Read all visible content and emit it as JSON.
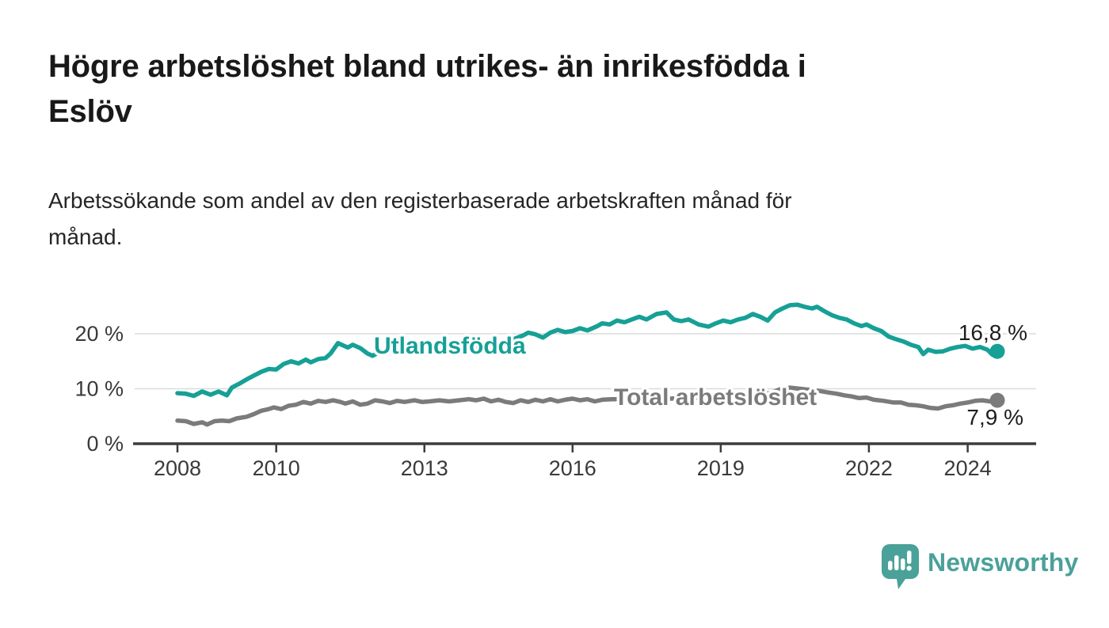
{
  "header": {
    "title": "Högre arbetslöshet bland utrikes- än inrikesfödda i\nEslöv",
    "subtitle": "Arbetssökande som andel av den registerbaserade arbetskraften månad för\nmånad."
  },
  "branding": {
    "logo_text": "Newsworthy",
    "logo_color": "#4AA199",
    "logo_icon": "newsworthy-speech-bubble-bar-chart-icon"
  },
  "chart_data": {
    "type": "line",
    "title": "Högre arbetslöshet bland utrikes- än inrikesfödda i Eslöv",
    "subtitle": "Arbetssökande som andel av den registerbaserade arbetskraften månad för månad.",
    "xlabel": "",
    "ylabel": "",
    "unit": "%",
    "decimal_separator": ",",
    "xlim": [
      2007.1,
      2025.4
    ],
    "ylim": [
      0,
      28
    ],
    "grid": "horizontal",
    "legend_position": "inline-labels",
    "colors": {
      "gridline": "#DBDBDB",
      "axis": "#3C3C3C",
      "tick_label": "#3A3A3A",
      "value_label": "#1E1E1E"
    },
    "x_ticks": [
      {
        "value": 2008,
        "label": "2008"
      },
      {
        "value": 2010,
        "label": "2010"
      },
      {
        "value": 2013,
        "label": "2013"
      },
      {
        "value": 2016,
        "label": "2016"
      },
      {
        "value": 2019,
        "label": "2019"
      },
      {
        "value": 2022,
        "label": "2022"
      },
      {
        "value": 2024,
        "label": "2024"
      }
    ],
    "y_ticks": [
      {
        "value": 0,
        "label": "0 %"
      },
      {
        "value": 10,
        "label": "10 %"
      },
      {
        "value": 20,
        "label": "20 %"
      }
    ],
    "series": [
      {
        "name": "Utlandsfödda",
        "color": "#16A096",
        "end_value": 16.8,
        "end_value_label": "16,8 %",
        "points": [
          [
            2008.0,
            9.2
          ],
          [
            2008.17,
            9.1
          ],
          [
            2008.33,
            8.7
          ],
          [
            2008.5,
            9.5
          ],
          [
            2008.67,
            8.9
          ],
          [
            2008.83,
            9.5
          ],
          [
            2009.0,
            8.8
          ],
          [
            2009.1,
            10.2
          ],
          [
            2009.25,
            10.9
          ],
          [
            2009.4,
            11.7
          ],
          [
            2009.55,
            12.4
          ],
          [
            2009.7,
            13.1
          ],
          [
            2009.85,
            13.6
          ],
          [
            2010.0,
            13.5
          ],
          [
            2010.15,
            14.5
          ],
          [
            2010.3,
            15.0
          ],
          [
            2010.45,
            14.6
          ],
          [
            2010.6,
            15.3
          ],
          [
            2010.7,
            14.8
          ],
          [
            2010.85,
            15.4
          ],
          [
            2011.0,
            15.6
          ],
          [
            2011.1,
            16.4
          ],
          [
            2011.25,
            18.3
          ],
          [
            2011.35,
            17.9
          ],
          [
            2011.45,
            17.5
          ],
          [
            2011.55,
            18.0
          ],
          [
            2011.7,
            17.4
          ],
          [
            2011.85,
            16.4
          ],
          [
            2011.95,
            16.0
          ],
          [
            2012.1,
            16.7
          ],
          [
            2012.25,
            17.0
          ],
          [
            2012.4,
            16.7
          ],
          [
            2012.55,
            17.2
          ],
          [
            2012.7,
            16.7
          ],
          [
            2012.85,
            16.9
          ],
          [
            2013.0,
            17.0
          ],
          [
            2013.2,
            17.3
          ],
          [
            2013.4,
            17.0
          ],
          [
            2013.6,
            17.4
          ],
          [
            2013.8,
            17.2
          ],
          [
            2014.0,
            17.6
          ],
          [
            2014.2,
            17.9
          ],
          [
            2014.4,
            18.3
          ],
          [
            2014.6,
            18.6
          ],
          [
            2014.8,
            19.0
          ],
          [
            2015.0,
            19.7
          ],
          [
            2015.1,
            20.2
          ],
          [
            2015.25,
            19.9
          ],
          [
            2015.4,
            19.3
          ],
          [
            2015.55,
            20.2
          ],
          [
            2015.7,
            20.7
          ],
          [
            2015.85,
            20.3
          ],
          [
            2016.0,
            20.5
          ],
          [
            2016.15,
            21.0
          ],
          [
            2016.3,
            20.6
          ],
          [
            2016.5,
            21.4
          ],
          [
            2016.6,
            21.9
          ],
          [
            2016.75,
            21.7
          ],
          [
            2016.9,
            22.4
          ],
          [
            2017.05,
            22.1
          ],
          [
            2017.2,
            22.6
          ],
          [
            2017.35,
            23.1
          ],
          [
            2017.5,
            22.6
          ],
          [
            2017.7,
            23.6
          ],
          [
            2017.9,
            23.9
          ],
          [
            2018.05,
            22.6
          ],
          [
            2018.2,
            22.3
          ],
          [
            2018.35,
            22.6
          ],
          [
            2018.55,
            21.7
          ],
          [
            2018.75,
            21.3
          ],
          [
            2018.9,
            21.9
          ],
          [
            2019.05,
            22.4
          ],
          [
            2019.2,
            22.1
          ],
          [
            2019.35,
            22.6
          ],
          [
            2019.5,
            22.9
          ],
          [
            2019.65,
            23.6
          ],
          [
            2019.8,
            23.1
          ],
          [
            2019.95,
            22.4
          ],
          [
            2020.1,
            23.9
          ],
          [
            2020.25,
            24.6
          ],
          [
            2020.4,
            25.2
          ],
          [
            2020.55,
            25.3
          ],
          [
            2020.7,
            24.9
          ],
          [
            2020.85,
            24.6
          ],
          [
            2020.95,
            24.9
          ],
          [
            2021.1,
            24.1
          ],
          [
            2021.25,
            23.4
          ],
          [
            2021.4,
            22.9
          ],
          [
            2021.55,
            22.6
          ],
          [
            2021.7,
            21.9
          ],
          [
            2021.85,
            21.4
          ],
          [
            2021.95,
            21.7
          ],
          [
            2022.1,
            21.0
          ],
          [
            2022.25,
            20.5
          ],
          [
            2022.4,
            19.5
          ],
          [
            2022.55,
            19.0
          ],
          [
            2022.7,
            18.6
          ],
          [
            2022.85,
            18.0
          ],
          [
            2023.0,
            17.6
          ],
          [
            2023.1,
            16.3
          ],
          [
            2023.2,
            17.1
          ],
          [
            2023.35,
            16.7
          ],
          [
            2023.5,
            16.8
          ],
          [
            2023.65,
            17.3
          ],
          [
            2023.8,
            17.6
          ],
          [
            2023.95,
            17.8
          ],
          [
            2024.1,
            17.3
          ],
          [
            2024.25,
            17.6
          ],
          [
            2024.4,
            17.1
          ],
          [
            2024.5,
            16.2
          ],
          [
            2024.6,
            16.8
          ]
        ]
      },
      {
        "name": "Total arbetslöshet",
        "color": "#7B7B7B",
        "end_value": 7.9,
        "end_value_label": "7,9 %",
        "points": [
          [
            2008.0,
            4.2
          ],
          [
            2008.17,
            4.1
          ],
          [
            2008.33,
            3.6
          ],
          [
            2008.5,
            3.9
          ],
          [
            2008.6,
            3.5
          ],
          [
            2008.75,
            4.1
          ],
          [
            2008.9,
            4.2
          ],
          [
            2009.05,
            4.1
          ],
          [
            2009.2,
            4.6
          ],
          [
            2009.4,
            4.9
          ],
          [
            2009.55,
            5.4
          ],
          [
            2009.7,
            6.0
          ],
          [
            2009.85,
            6.3
          ],
          [
            2009.95,
            6.6
          ],
          [
            2010.1,
            6.3
          ],
          [
            2010.25,
            6.9
          ],
          [
            2010.4,
            7.1
          ],
          [
            2010.55,
            7.6
          ],
          [
            2010.7,
            7.3
          ],
          [
            2010.85,
            7.8
          ],
          [
            2011.0,
            7.6
          ],
          [
            2011.15,
            7.9
          ],
          [
            2011.3,
            7.6
          ],
          [
            2011.4,
            7.3
          ],
          [
            2011.55,
            7.7
          ],
          [
            2011.7,
            7.1
          ],
          [
            2011.85,
            7.3
          ],
          [
            2012.0,
            7.9
          ],
          [
            2012.15,
            7.7
          ],
          [
            2012.3,
            7.4
          ],
          [
            2012.45,
            7.8
          ],
          [
            2012.6,
            7.6
          ],
          [
            2012.8,
            7.9
          ],
          [
            2012.95,
            7.6
          ],
          [
            2013.1,
            7.7
          ],
          [
            2013.3,
            7.9
          ],
          [
            2013.5,
            7.7
          ],
          [
            2013.7,
            7.9
          ],
          [
            2013.9,
            8.1
          ],
          [
            2014.05,
            7.9
          ],
          [
            2014.2,
            8.2
          ],
          [
            2014.35,
            7.7
          ],
          [
            2014.5,
            8.0
          ],
          [
            2014.65,
            7.6
          ],
          [
            2014.8,
            7.4
          ],
          [
            2014.95,
            7.9
          ],
          [
            2015.1,
            7.6
          ],
          [
            2015.25,
            8.0
          ],
          [
            2015.4,
            7.7
          ],
          [
            2015.55,
            8.1
          ],
          [
            2015.7,
            7.7
          ],
          [
            2015.85,
            8.0
          ],
          [
            2016.0,
            8.2
          ],
          [
            2016.15,
            7.9
          ],
          [
            2016.3,
            8.1
          ],
          [
            2016.45,
            7.7
          ],
          [
            2016.6,
            8.0
          ],
          [
            2016.8,
            8.1
          ],
          [
            2017.0,
            8.1
          ],
          [
            2017.25,
            8.3
          ],
          [
            2017.5,
            8.2
          ],
          [
            2017.75,
            8.3
          ],
          [
            2018.0,
            8.2
          ],
          [
            2018.25,
            8.4
          ],
          [
            2018.5,
            8.3
          ],
          [
            2018.75,
            8.5
          ],
          [
            2019.0,
            8.6
          ],
          [
            2019.25,
            8.7
          ],
          [
            2019.5,
            8.8
          ],
          [
            2019.75,
            9.0
          ],
          [
            2020.0,
            9.2
          ],
          [
            2020.2,
            9.9
          ],
          [
            2020.4,
            10.2
          ],
          [
            2020.6,
            10.0
          ],
          [
            2020.8,
            9.8
          ],
          [
            2021.0,
            9.6
          ],
          [
            2021.2,
            9.3
          ],
          [
            2021.35,
            9.1
          ],
          [
            2021.5,
            8.8
          ],
          [
            2021.65,
            8.6
          ],
          [
            2021.8,
            8.3
          ],
          [
            2021.95,
            8.4
          ],
          [
            2022.1,
            8.0
          ],
          [
            2022.3,
            7.8
          ],
          [
            2022.5,
            7.5
          ],
          [
            2022.65,
            7.5
          ],
          [
            2022.8,
            7.1
          ],
          [
            2022.95,
            7.0
          ],
          [
            2023.1,
            6.8
          ],
          [
            2023.25,
            6.5
          ],
          [
            2023.4,
            6.4
          ],
          [
            2023.55,
            6.8
          ],
          [
            2023.7,
            7.0
          ],
          [
            2023.85,
            7.3
          ],
          [
            2024.0,
            7.5
          ],
          [
            2024.15,
            7.8
          ],
          [
            2024.3,
            7.9
          ],
          [
            2024.45,
            7.7
          ],
          [
            2024.6,
            7.9
          ]
        ]
      }
    ]
  }
}
